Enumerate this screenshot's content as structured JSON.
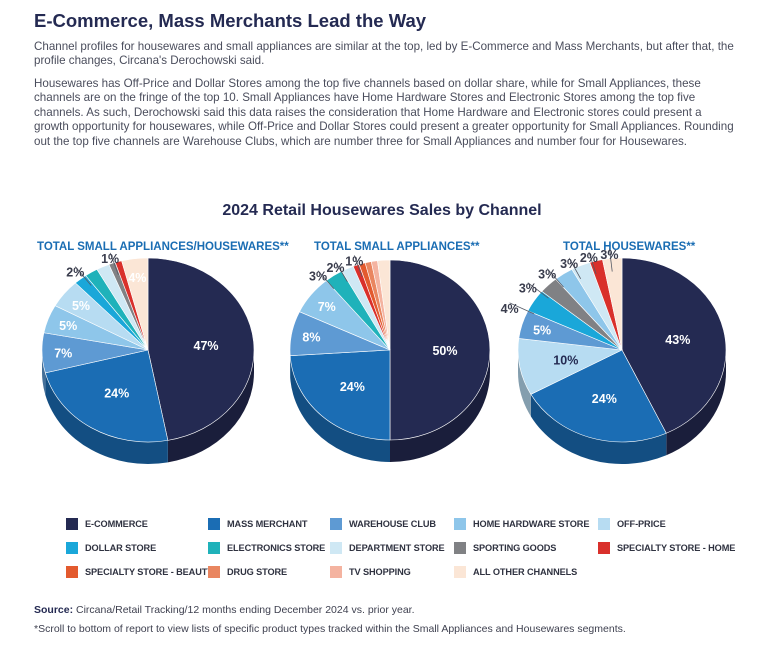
{
  "headline": "E-Commerce, Mass Merchants Lead the Way",
  "paragraphs": [
    "Channel profiles for housewares and small appliances are similar at the top, led by E-Commerce and Mass Merchants, but after that, the profile changes, Circana's Derochowski said.",
    "Housewares has Off-Price and Dollar Stores among the top five channels based on dollar share, while for Small Appliances, these channels are on the fringe of the top 10. Small Appliances have Home Hardware Stores and Electronic Stores among the top five channels. As such, Derochowski said this data raises the consideration that Home Hardware and Electronic stores could present a growth opportunity for housewares, while Off-Price and Dollar Stores could present a greater opportunity for Small Appliances. Rounding out the top five channels are Warehouse Clubs, which are number three for Small Appliances and number four for Housewares."
  ],
  "chart_data": {
    "type": "pie",
    "title": "2024 Retail Housewares Sales by Channel",
    "legend_position": "bottom",
    "channels": [
      {
        "name": "E-COMMERCE",
        "color": "#242a52"
      },
      {
        "name": "MASS MERCHANT",
        "color": "#1b6db4"
      },
      {
        "name": "WAREHOUSE CLUB",
        "color": "#5e9ad3"
      },
      {
        "name": "HOME HARDWARE STORE",
        "color": "#8ec6ea"
      },
      {
        "name": "OFF-PRICE",
        "color": "#b7dcf2"
      },
      {
        "name": "DOLLAR STORE",
        "color": "#1aa7d9"
      },
      {
        "name": "ELECTRONICS STORE",
        "color": "#1fb2ba"
      },
      {
        "name": "DEPARTMENT STORE",
        "color": "#cfe8f4"
      },
      {
        "name": "SPORTING GOODS",
        "color": "#808184"
      },
      {
        "name": "SPECIALTY STORE - HOME",
        "color": "#d9302b"
      },
      {
        "name": "SPECIALTY STORE - BEAUTY",
        "color": "#e35a2e"
      },
      {
        "name": "DRUG STORE",
        "color": "#e98660"
      },
      {
        "name": "TV SHOPPING",
        "color": "#f4b3a0"
      },
      {
        "name": "ALL OTHER CHANNELS",
        "color": "#fbe6d6"
      }
    ],
    "pies": [
      {
        "title": "TOTAL SMALL APPLIANCES/HOUSEWARES**",
        "slices": [
          {
            "channel": "E-COMMERCE",
            "value": 47,
            "label": "47%"
          },
          {
            "channel": "MASS MERCHANT",
            "value": 24,
            "label": "24%"
          },
          {
            "channel": "WAREHOUSE CLUB",
            "value": 7,
            "label": "7%"
          },
          {
            "channel": "HOME HARDWARE STORE",
            "value": 5,
            "label": "5%"
          },
          {
            "channel": "OFF-PRICE",
            "value": 5,
            "label": "5%"
          },
          {
            "channel": "DOLLAR STORE",
            "value": 2,
            "label": ""
          },
          {
            "channel": "ELECTRONICS STORE",
            "value": 2,
            "label": "2%"
          },
          {
            "channel": "DEPARTMENT STORE",
            "value": 2,
            "label": ""
          },
          {
            "channel": "SPORTING GOODS",
            "value": 1,
            "label": ""
          },
          {
            "channel": "SPECIALTY STORE - HOME",
            "value": 1,
            "label": "1%"
          },
          {
            "channel": "ALL OTHER CHANNELS",
            "value": 4,
            "label": "4%"
          }
        ]
      },
      {
        "title": "TOTAL SMALL APPLIANCES**",
        "slices": [
          {
            "channel": "E-COMMERCE",
            "value": 50,
            "label": "50%"
          },
          {
            "channel": "MASS MERCHANT",
            "value": 24,
            "label": "24%"
          },
          {
            "channel": "WAREHOUSE CLUB",
            "value": 8,
            "label": "8%"
          },
          {
            "channel": "HOME HARDWARE STORE",
            "value": 7,
            "label": "7%"
          },
          {
            "channel": "ELECTRONICS STORE",
            "value": 3,
            "label": "3%"
          },
          {
            "channel": "DEPARTMENT STORE",
            "value": 2,
            "label": "2%"
          },
          {
            "channel": "SPECIALTY STORE - HOME",
            "value": 1,
            "label": ""
          },
          {
            "channel": "SPECIALTY STORE - BEAUTY",
            "value": 1,
            "label": "1%"
          },
          {
            "channel": "DRUG STORE",
            "value": 1,
            "label": ""
          },
          {
            "channel": "TV SHOPPING",
            "value": 1,
            "label": ""
          },
          {
            "channel": "ALL OTHER CHANNELS",
            "value": 2,
            "label": ""
          }
        ]
      },
      {
        "title": "TOTAL HOUSEWARES**",
        "slices": [
          {
            "channel": "E-COMMERCE",
            "value": 43,
            "label": "43%"
          },
          {
            "channel": "MASS MERCHANT",
            "value": 24,
            "label": "24%"
          },
          {
            "channel": "OFF-PRICE",
            "value": 10,
            "label": "10%"
          },
          {
            "channel": "WAREHOUSE CLUB",
            "value": 5,
            "label": "5%"
          },
          {
            "channel": "DOLLAR STORE",
            "value": 4,
            "label": "4%"
          },
          {
            "channel": "SPORTING GOODS",
            "value": 3,
            "label": "3%"
          },
          {
            "channel": "HOME HARDWARE STORE",
            "value": 3,
            "label": "3%"
          },
          {
            "channel": "DEPARTMENT STORE",
            "value": 3,
            "label": "3%"
          },
          {
            "channel": "SPECIALTY STORE - HOME",
            "value": 2,
            "label": "2%"
          },
          {
            "channel": "ALL OTHER CHANNELS",
            "value": 3,
            "label": "3%"
          }
        ]
      }
    ]
  },
  "source_label": "Source:",
  "source_text": "Circana/Retail Tracking/12 months ending December 2024 vs. prior year.",
  "footnote": "*Scroll to bottom of report to view lists of specific product types tracked within the Small Appliances and Housewares segments."
}
